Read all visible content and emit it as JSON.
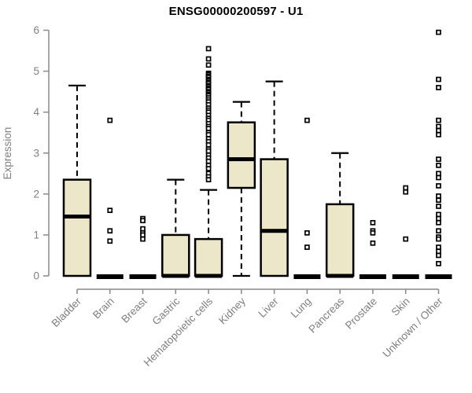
{
  "chart_data": {
    "type": "boxplot",
    "title": "ENSG00000200597 - U1",
    "ylabel": "Expression",
    "xlabel": "",
    "ylim": [
      0,
      6
    ],
    "yticks": [
      0,
      1,
      2,
      3,
      4,
      5,
      6
    ],
    "grid": false,
    "legend": "none",
    "marker": "open-square",
    "colors": {
      "box_fill": "#ECE7C8",
      "box_border": "#000000",
      "median": "#000000",
      "whisker": "#000000",
      "outlier": "#000000",
      "axis_line": "#898989",
      "tick_text": "#7f7f7f",
      "title_text": "#000000"
    },
    "categories": [
      "Bladder",
      "Brain",
      "Breast",
      "Gastric",
      "Hematopoietic cells",
      "Kidney",
      "Liver",
      "Lung",
      "Pancreas",
      "Prostate",
      "Skin",
      "Unknown / Other"
    ],
    "boxes": [
      {
        "label": "Bladder",
        "whisker_low": 0,
        "q1": 0,
        "median": 1.45,
        "q3": 2.35,
        "whisker_high": 4.65,
        "outliers": []
      },
      {
        "label": "Brain",
        "whisker_low": 0,
        "q1": 0,
        "median": 0,
        "q3": 0,
        "whisker_high": 0,
        "outliers": [
          3.8,
          1.6,
          1.1,
          0.85
        ]
      },
      {
        "label": "Breast",
        "whisker_low": 0,
        "q1": 0,
        "median": 0,
        "q3": 0,
        "whisker_high": 0,
        "outliers": [
          1.4,
          1.35,
          1.15,
          1.05,
          1.0,
          0.9
        ]
      },
      {
        "label": "Gastric",
        "whisker_low": 0,
        "q1": 0,
        "median": 0,
        "q3": 1.0,
        "whisker_high": 2.35,
        "outliers": []
      },
      {
        "label": "Hematopoietic cells",
        "whisker_low": 0,
        "q1": 0,
        "median": 0,
        "q3": 0.9,
        "whisker_high": 2.1,
        "outliers": [
          5.55,
          5.3,
          5.15,
          4.95,
          4.92,
          4.88,
          4.85,
          4.8,
          4.77,
          4.73,
          4.7,
          4.65,
          4.62,
          4.58,
          4.55,
          4.5,
          4.47,
          4.43,
          4.4,
          4.35,
          4.3,
          4.25,
          4.18,
          4.1,
          4.05,
          4.0,
          3.92,
          3.85,
          3.8,
          3.72,
          3.65,
          3.6,
          3.5,
          3.45,
          3.35,
          3.28,
          3.2,
          3.1,
          3.05,
          2.95,
          2.88,
          2.8,
          2.7,
          2.62,
          2.5,
          2.42,
          2.35
        ]
      },
      {
        "label": "Kidney",
        "whisker_low": 0,
        "q1": 2.15,
        "median": 2.85,
        "q3": 3.75,
        "whisker_high": 4.25,
        "outliers": []
      },
      {
        "label": "Liver",
        "whisker_low": 0,
        "q1": 0,
        "median": 1.1,
        "q3": 2.85,
        "whisker_high": 4.75,
        "outliers": []
      },
      {
        "label": "Lung",
        "whisker_low": 0,
        "q1": 0,
        "median": 0,
        "q3": 0,
        "whisker_high": 0,
        "outliers": [
          3.8,
          1.05,
          0.7
        ]
      },
      {
        "label": "Pancreas",
        "whisker_low": 0,
        "q1": 0,
        "median": 0,
        "q3": 1.75,
        "whisker_high": 3.0,
        "outliers": []
      },
      {
        "label": "Prostate",
        "whisker_low": 0,
        "q1": 0,
        "median": 0,
        "q3": 0,
        "whisker_high": 0,
        "outliers": [
          1.3,
          1.1,
          1.05,
          0.8
        ]
      },
      {
        "label": "Skin",
        "whisker_low": 0,
        "q1": 0,
        "median": 0,
        "q3": 0,
        "whisker_high": 0,
        "outliers": [
          2.15,
          2.05,
          0.9
        ]
      },
      {
        "label": "Unknown / Other",
        "whisker_low": 0,
        "q1": 0,
        "median": 0,
        "q3": 0,
        "whisker_high": 0,
        "outliers": [
          5.95,
          4.8,
          4.6,
          3.8,
          3.65,
          3.55,
          3.45,
          2.85,
          2.7,
          2.5,
          2.4,
          2.2,
          1.95,
          1.85,
          1.7,
          1.5,
          1.4,
          1.3,
          1.1,
          0.95,
          0.9,
          0.7,
          0.6,
          0.5,
          0.3
        ]
      }
    ]
  }
}
